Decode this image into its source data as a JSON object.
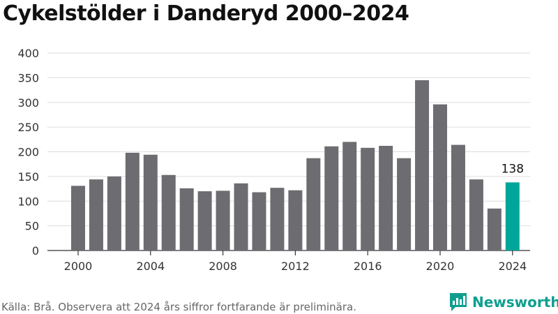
{
  "chart_data": {
    "type": "bar",
    "title": "Cykelstölder i Danderyd 2000–2024",
    "xlabel": "",
    "ylabel": "",
    "categories": [
      "2000",
      "2001",
      "2002",
      "2003",
      "2004",
      "2005",
      "2006",
      "2007",
      "2008",
      "2009",
      "2010",
      "2011",
      "2012",
      "2013",
      "2014",
      "2015",
      "2016",
      "2017",
      "2018",
      "2019",
      "2020",
      "2021",
      "2022",
      "2023",
      "2024"
    ],
    "values": [
      131,
      144,
      150,
      198,
      194,
      153,
      126,
      120,
      121,
      136,
      118,
      127,
      122,
      187,
      211,
      220,
      208,
      212,
      187,
      345,
      296,
      214,
      144,
      85,
      138
    ],
    "x_tick_labels": [
      "2000",
      "2004",
      "2008",
      "2012",
      "2016",
      "2020",
      "2024"
    ],
    "y_ticks": [
      0,
      50,
      100,
      150,
      200,
      250,
      300,
      350,
      400
    ],
    "ylim": [
      0,
      400
    ],
    "grid": true,
    "legend": "none",
    "highlight_label": "138",
    "colors": {
      "bar": "#6d6c70",
      "highlight": "#00a69a",
      "grid": "#dddddd",
      "axis": "#333333"
    }
  },
  "footer": {
    "source": "Källa: Brå. Observera att 2024 års siffror fortfarande är preliminära.",
    "brand": "Newsworthy",
    "brand_icon": "bar-chart-logo-icon"
  }
}
